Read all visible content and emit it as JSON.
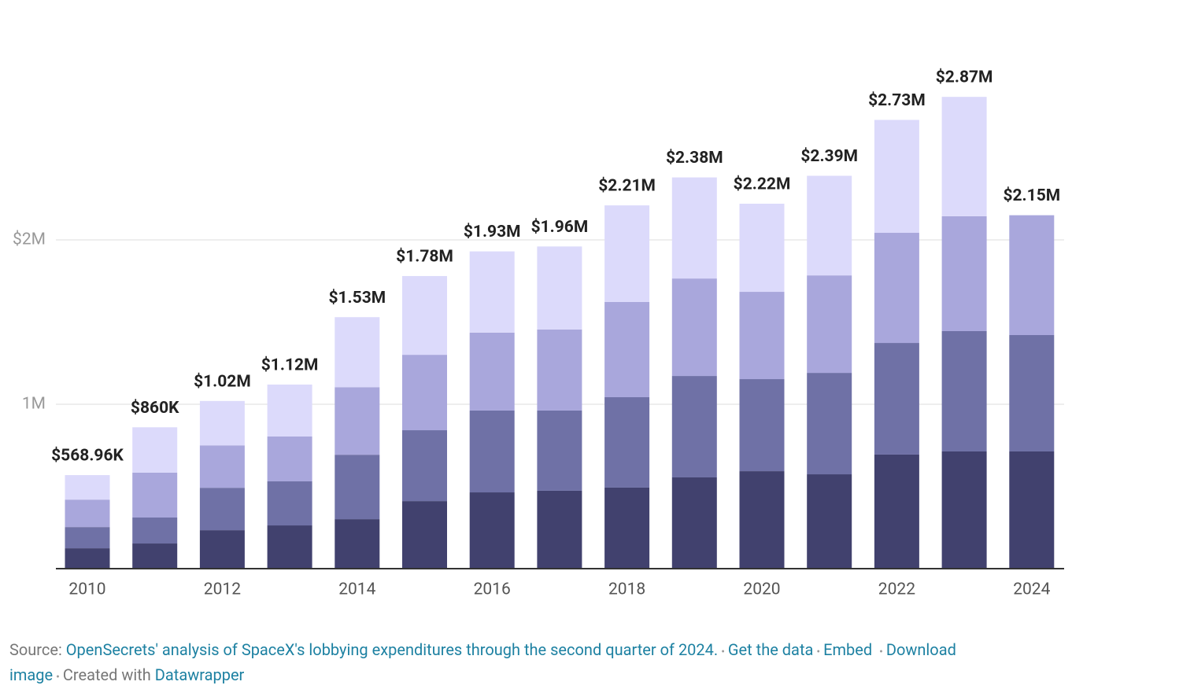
{
  "chart_data": {
    "type": "stacked_bar",
    "categories": [
      "2010",
      null,
      "2012",
      null,
      "2014",
      null,
      "2016",
      null,
      "2018",
      null,
      "2020",
      null,
      "2022",
      null,
      "2024"
    ],
    "series": [
      {
        "color": "#41416e",
        "values": [
          124000,
          153000,
          234000,
          263000,
          301000,
          411000,
          464000,
          474000,
          493000,
          555000,
          593000,
          574000,
          694000,
          713000,
          713000
        ]
      },
      {
        "color": "#6f71a6",
        "values": [
          129000,
          158000,
          258000,
          268000,
          392000,
          431000,
          498000,
          488000,
          550000,
          617000,
          560000,
          617000,
          679000,
          732000,
          708000
        ]
      },
      {
        "color": "#a9a7dc",
        "values": [
          167000,
          273000,
          258000,
          273000,
          411000,
          459000,
          474000,
          493000,
          579000,
          593000,
          531000,
          593000,
          670000,
          699000,
          729000
        ]
      },
      {
        "color": "#dcdafb",
        "values": [
          149000,
          276000,
          270000,
          316000,
          426000,
          479000,
          494000,
          505000,
          588000,
          615000,
          536000,
          606000,
          687000,
          726000,
          null
        ]
      }
    ],
    "totals": [
      568960,
      860000,
      1020000,
      1120000,
      1530000,
      1780000,
      1930000,
      1960000,
      2210000,
      2380000,
      2220000,
      2390000,
      2730000,
      2870000,
      2150000
    ],
    "total_labels": [
      "$568.96K",
      "$860K",
      "$1.02M",
      "$1.12M",
      "$1.53M",
      "$1.78M",
      "$1.93M",
      "$1.96M",
      "$2.21M",
      "$2.38M",
      "$2.22M",
      "$2.39M",
      "$2.73M",
      "$2.87M",
      "$2.15M"
    ],
    "ylim": [
      0,
      3200000
    ],
    "yticks": [
      {
        "value": 1000000,
        "label": "1M"
      },
      {
        "value": 2000000,
        "label": "$2M"
      }
    ],
    "grid": true
  },
  "footer": {
    "source_label": "Source:",
    "source_text": "OpenSecrets' analysis of SpaceX's lobbying expenditures through the second quarter of 2024.",
    "separator": "•",
    "get_data": "Get the data",
    "embed": "Embed",
    "download": "Download image",
    "created_with": "Created with",
    "datawrapper": "Datawrapper"
  }
}
